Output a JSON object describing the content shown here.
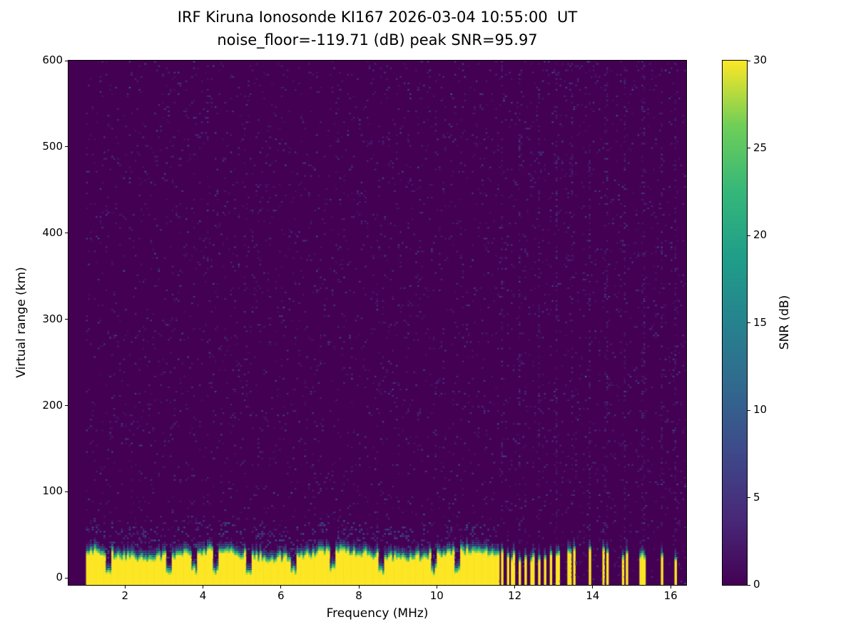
{
  "chart_data": {
    "type": "heatmap",
    "title": "IRF Kiruna Ionosonde KI167 2026-03-04 10:55:00  UT",
    "subtitle": "noise_floor=-119.71 (dB) peak SNR=95.97",
    "station": "KI167",
    "timestamp_ut": "2026-03-04 10:55:00",
    "noise_floor_db": -119.71,
    "peak_snr_db": 95.97,
    "xlabel": "Frequency (MHz)",
    "ylabel": "Virtual range (km)",
    "xlim": [
      0.55,
      16.4
    ],
    "ylim": [
      -8,
      600
    ],
    "xticks": [
      2,
      4,
      6,
      8,
      10,
      12,
      14,
      16
    ],
    "yticks": [
      0,
      100,
      200,
      300,
      400,
      500,
      600
    ],
    "colorbar": {
      "label": "SNR (dB)",
      "min": 0,
      "max": 30,
      "ticks": [
        0,
        5,
        10,
        15,
        20,
        25,
        30
      ],
      "colormap": "viridis"
    },
    "data_freq_start_mhz": 1.0,
    "background_snr_db": 0,
    "noise_speckle": {
      "probability": 0.055,
      "snr_range_db": [
        1.5,
        9
      ]
    },
    "ground_echo": {
      "freq_start_mhz": 1.0,
      "freq_end_mhz": 11.6,
      "snr_db": 30,
      "top_km_mean": 33,
      "top_km_jitter": 9,
      "transition_km": 16,
      "dip_freqs_mhz": [
        1.55,
        3.1,
        3.75,
        4.3,
        5.15,
        6.3,
        7.3,
        8.55,
        9.9,
        10.5
      ]
    },
    "stripe_freqs_mhz": [
      11.64,
      11.79,
      11.93,
      12.1,
      12.26,
      12.43,
      12.59,
      12.74,
      12.9,
      13.08,
      13.38,
      13.49,
      13.9,
      14.26,
      14.35,
      14.75,
      14.84,
      15.23,
      15.32,
      15.76,
      16.12
    ],
    "stripe_width_mhz": 0.06,
    "noise_column_freqs_mhz": [
      11.66,
      12.1,
      12.59,
      13.05,
      13.45,
      13.9,
      14.33,
      14.8,
      15.28,
      15.74,
      16.12
    ]
  }
}
